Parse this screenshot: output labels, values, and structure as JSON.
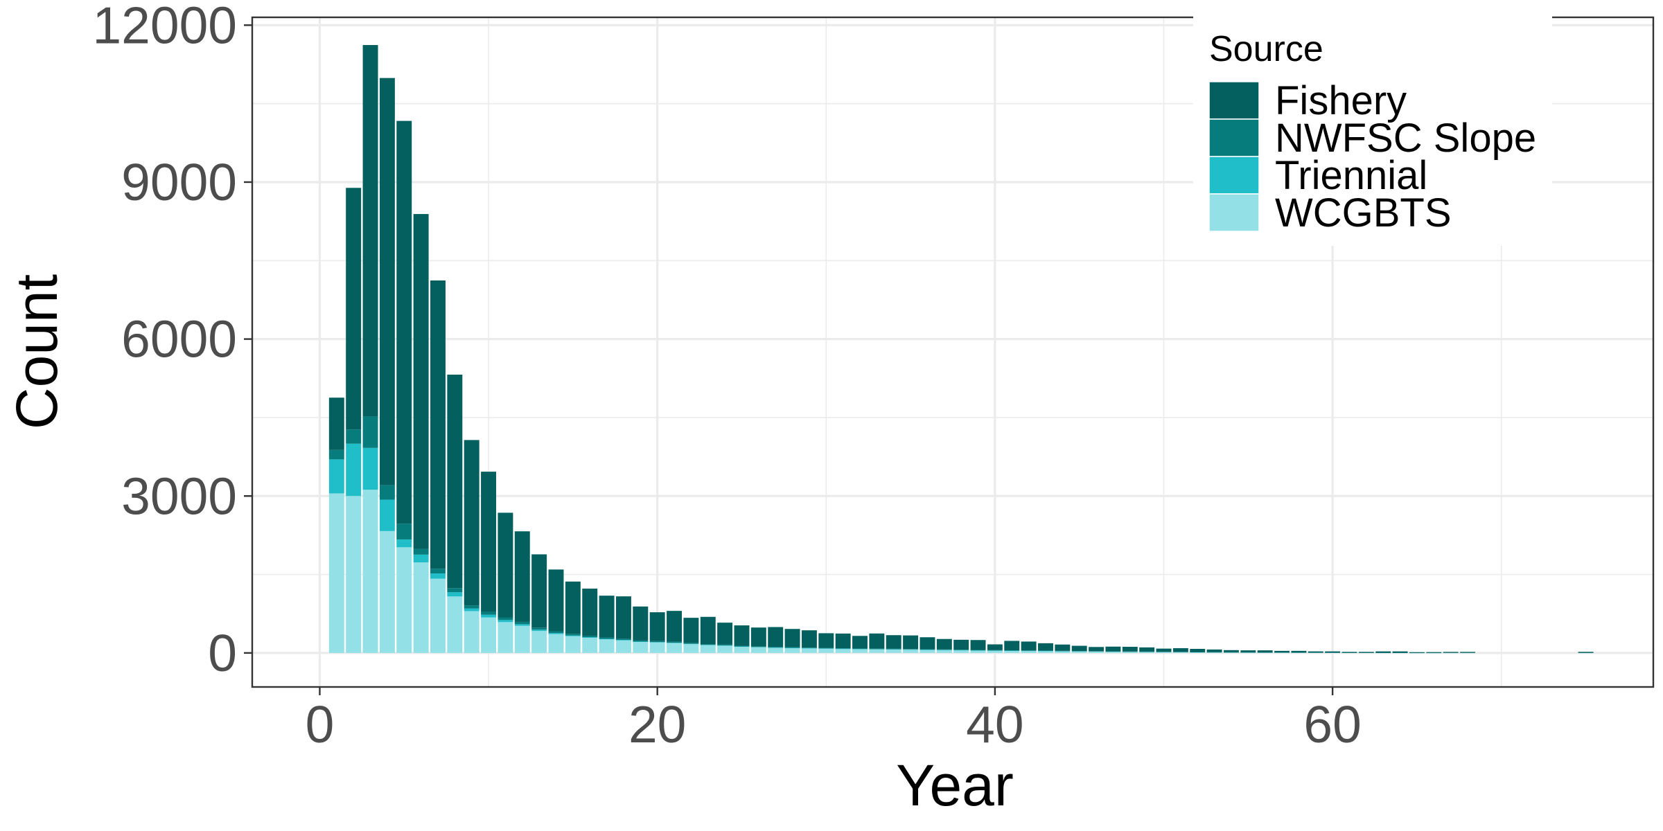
{
  "chart_data": {
    "type": "bar",
    "stacked": true,
    "xlabel": "Year",
    "ylabel": "Count",
    "xlim": [
      -4,
      79
    ],
    "ylim": [
      -650,
      12150
    ],
    "x_ticks": [
      0,
      20,
      40,
      60
    ],
    "y_ticks": [
      0,
      3000,
      6000,
      9000,
      12000
    ],
    "grid": true,
    "legend": {
      "title": "Source",
      "position": "top-right",
      "order": [
        "Fishery",
        "NWFSC Slope",
        "Triennial",
        "WCGBTS"
      ]
    },
    "colors": {
      "Fishery": "#045f5f",
      "NWFSC Slope": "#067c7c",
      "Triennial": "#1fbec9",
      "WCGBTS": "#93e0e6"
    },
    "x": [
      1,
      2,
      3,
      4,
      5,
      6,
      7,
      8,
      9,
      10,
      11,
      12,
      13,
      14,
      15,
      16,
      17,
      18,
      19,
      20,
      21,
      22,
      23,
      24,
      25,
      26,
      27,
      28,
      29,
      30,
      31,
      32,
      33,
      34,
      35,
      36,
      37,
      38,
      39,
      40,
      41,
      42,
      43,
      44,
      45,
      46,
      47,
      48,
      49,
      50,
      51,
      52,
      53,
      54,
      55,
      56,
      57,
      58,
      59,
      60,
      61,
      62,
      63,
      64,
      65,
      66,
      67,
      68,
      75
    ],
    "series": [
      {
        "name": "WCGBTS",
        "values": [
          3050,
          3000,
          3120,
          2330,
          2020,
          1730,
          1420,
          1080,
          800,
          680,
          590,
          520,
          420,
          360,
          320,
          290,
          260,
          240,
          210,
          200,
          190,
          170,
          150,
          140,
          120,
          110,
          100,
          95,
          90,
          85,
          80,
          75,
          72,
          70,
          66,
          62,
          60,
          55,
          50,
          48,
          45,
          42,
          40,
          36,
          33,
          30,
          28,
          25,
          23,
          20,
          18,
          16,
          14,
          12,
          11,
          10,
          9,
          8,
          7,
          6,
          5,
          5,
          4,
          4,
          3,
          3,
          2,
          2,
          1
        ]
      },
      {
        "name": "Triennial",
        "values": [
          650,
          1000,
          800,
          600,
          150,
          150,
          100,
          80,
          50,
          50,
          40,
          30,
          25,
          20,
          15,
          12,
          10,
          10,
          8,
          8,
          6,
          6,
          5,
          5,
          4,
          4,
          3,
          3,
          3,
          2,
          2,
          2,
          2,
          2,
          2,
          1,
          1,
          1,
          1,
          1,
          1,
          1,
          1,
          1,
          0,
          0,
          0,
          0,
          0,
          0,
          0,
          0,
          0,
          0,
          0,
          0,
          0,
          0,
          0,
          0,
          0,
          0,
          0,
          0,
          0,
          0,
          0,
          0,
          0
        ]
      },
      {
        "name": "NWFSC Slope",
        "values": [
          180,
          270,
          600,
          280,
          300,
          110,
          90,
          80,
          60,
          55,
          50,
          45,
          40,
          35,
          30,
          28,
          25,
          22,
          20,
          20,
          18,
          16,
          15,
          14,
          13,
          12,
          12,
          11,
          10,
          10,
          9,
          9,
          8,
          8,
          7,
          7,
          6,
          6,
          6,
          5,
          5,
          5,
          5,
          4,
          4,
          4,
          3,
          3,
          3,
          3,
          3,
          2,
          2,
          2,
          2,
          2,
          2,
          1,
          1,
          1,
          1,
          1,
          1,
          1,
          1,
          1,
          0,
          0,
          0
        ]
      },
      {
        "name": "Fishery",
        "values": [
          1000,
          4620,
          7100,
          7780,
          7700,
          6400,
          5510,
          4080,
          3160,
          2680,
          2000,
          1730,
          1400,
          1180,
          1000,
          900,
          800,
          810,
          650,
          550,
          590,
          480,
          520,
          420,
          390,
          360,
          380,
          350,
          330,
          280,
          280,
          240,
          290,
          260,
          260,
          230,
          200,
          190,
          190,
          110,
          180,
          170,
          140,
          120,
          100,
          80,
          90,
          90,
          80,
          60,
          70,
          60,
          50,
          40,
          37,
          38,
          29,
          31,
          22,
          23,
          14,
          14,
          25,
          25,
          11,
          12,
          18,
          18,
          20
        ]
      }
    ]
  }
}
